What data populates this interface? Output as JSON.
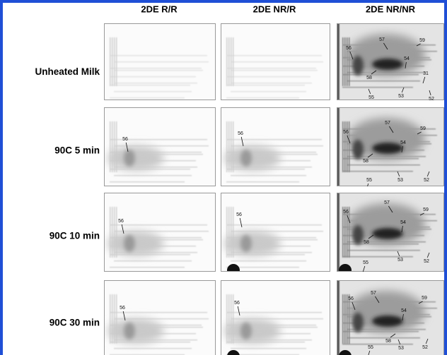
{
  "columns": [
    "2DE R/R",
    "2DE NR/R",
    "2DE NR/NR"
  ],
  "rows": [
    {
      "label": "Unheated Milk",
      "panels": [
        {
          "spots": []
        },
        {
          "spots": []
        },
        {
          "spots": [
            "56",
            "57",
            "59",
            "54",
            "58",
            "31",
            "55",
            "53",
            "52"
          ]
        }
      ]
    },
    {
      "label": "90C 5 min",
      "panels": [
        {
          "spots": [
            "56"
          ]
        },
        {
          "spots": [
            "56"
          ]
        },
        {
          "spots": [
            "56",
            "57",
            "59",
            "54",
            "58",
            "55",
            "53",
            "52"
          ]
        }
      ]
    },
    {
      "label": "90C 10 min",
      "panels": [
        {
          "spots": [
            "56"
          ]
        },
        {
          "spots": [
            "56"
          ]
        },
        {
          "spots": [
            "56",
            "57",
            "59",
            "54",
            "58",
            "55",
            "53",
            "52"
          ]
        }
      ]
    },
    {
      "label": "90C 30 min",
      "panels": [
        {
          "spots": [
            "56"
          ]
        },
        {
          "spots": [
            "56"
          ]
        },
        {
          "spots": [
            "56",
            "57",
            "59",
            "54",
            "58",
            "55",
            "53",
            "52"
          ]
        }
      ]
    }
  ]
}
